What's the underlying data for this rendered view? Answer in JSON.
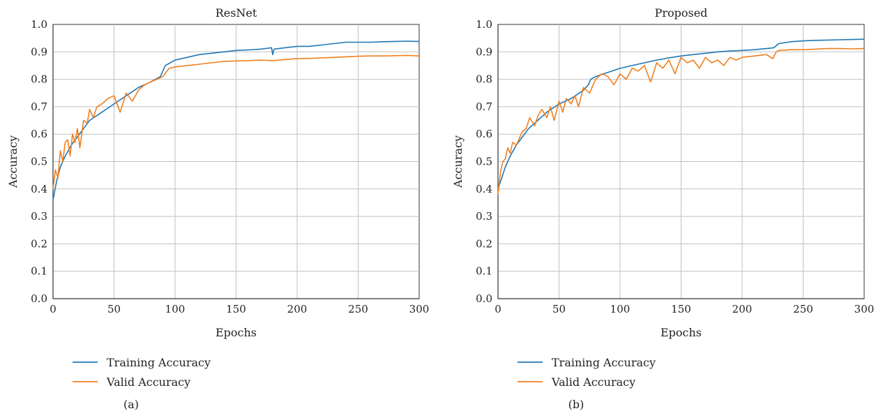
{
  "figure": {
    "captions": [
      "(a)",
      "(b)"
    ]
  },
  "colors": {
    "training": "#1f77b4",
    "valid": "#f07f1e",
    "grid": "#c0c0c0",
    "axis": "#333333"
  },
  "chart_data": [
    {
      "type": "line",
      "title": "ResNet",
      "xlabel": "Epochs",
      "ylabel": "Accuracy",
      "xlim": [
        0,
        300
      ],
      "ylim": [
        0.0,
        1.0
      ],
      "xticks": [
        0,
        50,
        100,
        150,
        200,
        250,
        300
      ],
      "yticks": [
        "0.0",
        "0.1",
        "0.2",
        "0.3",
        "0.4",
        "0.5",
        "0.6",
        "0.7",
        "0.8",
        "0.9",
        "1.0"
      ],
      "grid": true,
      "legend_position": "bottom-left",
      "series": [
        {
          "name": "Training Accuracy",
          "x": [
            0,
            3,
            6,
            10,
            15,
            20,
            25,
            30,
            40,
            50,
            60,
            70,
            80,
            88,
            92,
            100,
            110,
            120,
            130,
            140,
            150,
            160,
            170,
            179,
            180,
            181,
            190,
            200,
            210,
            220,
            230,
            240,
            250,
            260,
            270,
            280,
            290,
            300
          ],
          "y": [
            0.36,
            0.43,
            0.48,
            0.52,
            0.56,
            0.59,
            0.62,
            0.65,
            0.68,
            0.71,
            0.74,
            0.77,
            0.79,
            0.81,
            0.85,
            0.87,
            0.88,
            0.89,
            0.895,
            0.9,
            0.905,
            0.907,
            0.91,
            0.915,
            0.89,
            0.91,
            0.915,
            0.92,
            0.92,
            0.925,
            0.93,
            0.935,
            0.935,
            0.935,
            0.937,
            0.938,
            0.939,
            0.938
          ]
        },
        {
          "name": "Valid Accuracy",
          "x": [
            0,
            2,
            4,
            6,
            8,
            10,
            12,
            14,
            16,
            18,
            20,
            22,
            25,
            28,
            30,
            33,
            36,
            40,
            45,
            50,
            55,
            60,
            65,
            70,
            75,
            80,
            85,
            90,
            95,
            100,
            110,
            120,
            130,
            140,
            150,
            160,
            170,
            180,
            190,
            200,
            210,
            220,
            230,
            240,
            250,
            260,
            270,
            280,
            290,
            300
          ],
          "y": [
            0.4,
            0.47,
            0.44,
            0.54,
            0.5,
            0.57,
            0.58,
            0.52,
            0.6,
            0.57,
            0.62,
            0.55,
            0.65,
            0.64,
            0.69,
            0.66,
            0.7,
            0.71,
            0.73,
            0.74,
            0.68,
            0.75,
            0.72,
            0.76,
            0.78,
            0.79,
            0.8,
            0.81,
            0.84,
            0.845,
            0.85,
            0.855,
            0.86,
            0.865,
            0.867,
            0.868,
            0.87,
            0.868,
            0.872,
            0.875,
            0.876,
            0.878,
            0.88,
            0.882,
            0.884,
            0.885,
            0.885,
            0.886,
            0.887,
            0.885
          ]
        }
      ]
    },
    {
      "type": "line",
      "title": "Proposed",
      "xlabel": "Epochs",
      "ylabel": "Accuracy",
      "xlim": [
        0,
        300
      ],
      "ylim": [
        0.0,
        1.0
      ],
      "xticks": [
        0,
        50,
        100,
        150,
        200,
        250,
        300
      ],
      "yticks": [
        "0.0",
        "0.1",
        "0.2",
        "0.3",
        "0.4",
        "0.5",
        "0.6",
        "0.7",
        "0.8",
        "0.9",
        "1.0"
      ],
      "grid": true,
      "legend_position": "bottom-left",
      "series": [
        {
          "name": "Training Accuracy",
          "x": [
            0,
            3,
            6,
            10,
            15,
            20,
            25,
            30,
            40,
            50,
            60,
            70,
            74,
            76,
            80,
            90,
            100,
            110,
            120,
            130,
            140,
            150,
            160,
            170,
            180,
            190,
            200,
            210,
            220,
            226,
            230,
            240,
            250,
            260,
            270,
            280,
            290,
            300
          ],
          "y": [
            0.4,
            0.44,
            0.48,
            0.52,
            0.56,
            0.59,
            0.62,
            0.64,
            0.68,
            0.71,
            0.73,
            0.76,
            0.78,
            0.8,
            0.81,
            0.825,
            0.84,
            0.85,
            0.86,
            0.87,
            0.878,
            0.885,
            0.89,
            0.895,
            0.9,
            0.903,
            0.905,
            0.908,
            0.912,
            0.915,
            0.93,
            0.937,
            0.94,
            0.942,
            0.943,
            0.944,
            0.945,
            0.946
          ]
        },
        {
          "name": "Valid Accuracy",
          "x": [
            0,
            2,
            4,
            6,
            8,
            10,
            12,
            15,
            18,
            20,
            23,
            26,
            30,
            33,
            36,
            40,
            43,
            46,
            50,
            53,
            56,
            60,
            63,
            66,
            70,
            75,
            80,
            85,
            90,
            95,
            100,
            105,
            110,
            115,
            120,
            125,
            130,
            135,
            140,
            145,
            150,
            155,
            160,
            165,
            170,
            175,
            180,
            185,
            190,
            195,
            200,
            210,
            220,
            225,
            228,
            230,
            240,
            250,
            260,
            270,
            280,
            290,
            300
          ],
          "y": [
            0.38,
            0.46,
            0.5,
            0.51,
            0.55,
            0.53,
            0.57,
            0.56,
            0.59,
            0.61,
            0.62,
            0.66,
            0.63,
            0.67,
            0.69,
            0.66,
            0.7,
            0.65,
            0.72,
            0.68,
            0.73,
            0.71,
            0.74,
            0.7,
            0.77,
            0.75,
            0.8,
            0.82,
            0.81,
            0.78,
            0.82,
            0.8,
            0.84,
            0.83,
            0.85,
            0.79,
            0.86,
            0.84,
            0.87,
            0.82,
            0.88,
            0.86,
            0.87,
            0.84,
            0.88,
            0.86,
            0.87,
            0.85,
            0.88,
            0.87,
            0.88,
            0.885,
            0.89,
            0.875,
            0.9,
            0.905,
            0.908,
            0.908,
            0.91,
            0.912,
            0.912,
            0.911,
            0.912
          ]
        }
      ]
    }
  ]
}
